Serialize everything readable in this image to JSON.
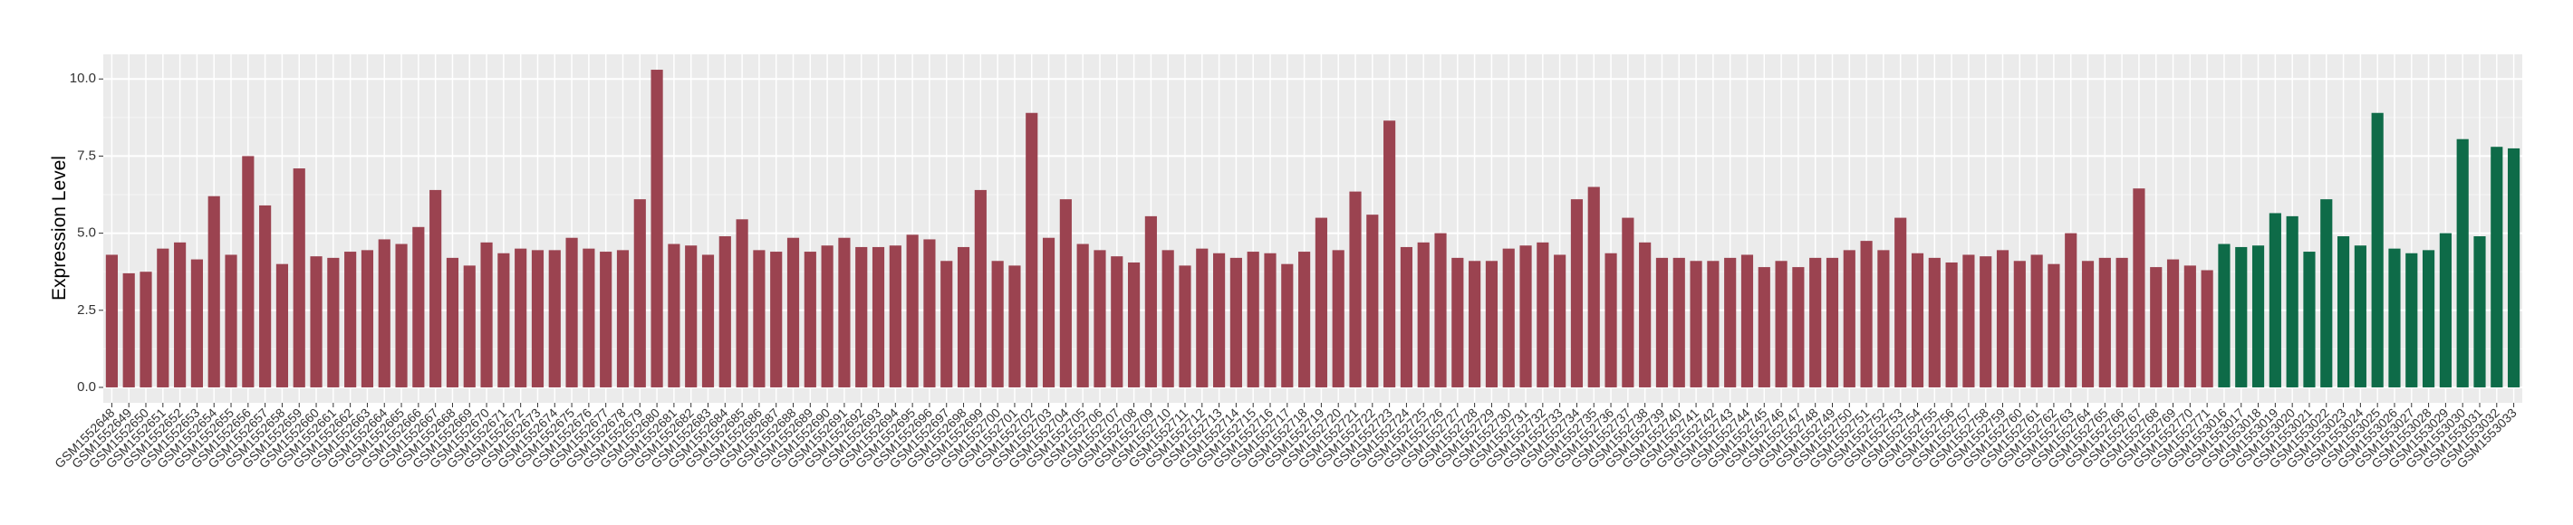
{
  "chart_data": {
    "type": "bar",
    "y_label": "Expression Level",
    "categories": [
      "GSM1552648",
      "GSM1552649",
      "GSM1552650",
      "GSM1552651",
      "GSM1552652",
      "GSM1552653",
      "GSM1552654",
      "GSM1552655",
      "GSM1552656",
      "GSM1552657",
      "GSM1552658",
      "GSM1552659",
      "GSM1552660",
      "GSM1552661",
      "GSM1552662",
      "GSM1552663",
      "GSM1552664",
      "GSM1552665",
      "GSM1552666",
      "GSM1552667",
      "GSM1552668",
      "GSM1552669",
      "GSM1552670",
      "GSM1552671",
      "GSM1552672",
      "GSM1552673",
      "GSM1552674",
      "GSM1552675",
      "GSM1552676",
      "GSM1552677",
      "GSM1552678",
      "GSM1552679",
      "GSM1552680",
      "GSM1552681",
      "GSM1552682",
      "GSM1552683",
      "GSM1552684",
      "GSM1552685",
      "GSM1552686",
      "GSM1552687",
      "GSM1552688",
      "GSM1552689",
      "GSM1552690",
      "GSM1552691",
      "GSM1552692",
      "GSM1552693",
      "GSM1552694",
      "GSM1552695",
      "GSM1552696",
      "GSM1552697",
      "GSM1552698",
      "GSM1552699",
      "GSM1552700",
      "GSM1552701",
      "GSM1552702",
      "GSM1552703",
      "GSM1552704",
      "GSM1552705",
      "GSM1552706",
      "GSM1552707",
      "GSM1552708",
      "GSM1552709",
      "GSM1552710",
      "GSM1552711",
      "GSM1552712",
      "GSM1552713",
      "GSM1552714",
      "GSM1552715",
      "GSM1552716",
      "GSM1552717",
      "GSM1552718",
      "GSM1552719",
      "GSM1552720",
      "GSM1552721",
      "GSM1552722",
      "GSM1552723",
      "GSM1552724",
      "GSM1552725",
      "GSM1552726",
      "GSM1552727",
      "GSM1552728",
      "GSM1552729",
      "GSM1552730",
      "GSM1552731",
      "GSM1552732",
      "GSM1552733",
      "GSM1552734",
      "GSM1552735",
      "GSM1552736",
      "GSM1552737",
      "GSM1552738",
      "GSM1552739",
      "GSM1552740",
      "GSM1552741",
      "GSM1552742",
      "GSM1552743",
      "GSM1552744",
      "GSM1552745",
      "GSM1552746",
      "GSM1552747",
      "GSM1552748",
      "GSM1552749",
      "GSM1552750",
      "GSM1552751",
      "GSM1552752",
      "GSM1552753",
      "GSM1552754",
      "GSM1552755",
      "GSM1552756",
      "GSM1552757",
      "GSM1552758",
      "GSM1552759",
      "GSM1552760",
      "GSM1552761",
      "GSM1552762",
      "GSM1552763",
      "GSM1552764",
      "GSM1552765",
      "GSM1552766",
      "GSM1552767",
      "GSM1552768",
      "GSM1552769",
      "GSM1552770",
      "GSM1552771",
      "GSM1553016",
      "GSM1553017",
      "GSM1553018",
      "GSM1553019",
      "GSM1553020",
      "GSM1553021",
      "GSM1553022",
      "GSM1553023",
      "GSM1553024",
      "GSM1553025",
      "GSM1553026",
      "GSM1553027",
      "GSM1553028",
      "GSM1553029",
      "GSM1553030",
      "GSM1553031",
      "GSM1553032",
      "GSM1553033"
    ],
    "values": [
      4.3,
      3.7,
      3.75,
      4.5,
      4.7,
      4.15,
      6.2,
      4.3,
      7.5,
      5.9,
      4.0,
      7.1,
      4.25,
      4.2,
      4.4,
      4.45,
      4.8,
      4.65,
      5.2,
      6.4,
      4.2,
      3.95,
      4.7,
      4.35,
      4.5,
      4.45,
      4.45,
      4.85,
      4.5,
      4.4,
      4.45,
      6.1,
      10.3,
      4.65,
      4.6,
      4.3,
      4.9,
      5.45,
      4.45,
      4.4,
      4.85,
      4.4,
      4.6,
      4.85,
      4.55,
      4.55,
      4.6,
      4.95,
      4.8,
      4.1,
      4.55,
      6.4,
      4.1,
      3.95,
      8.9,
      4.85,
      6.1,
      4.65,
      4.45,
      4.25,
      4.05,
      5.55,
      4.45,
      3.95,
      4.5,
      4.35,
      4.2,
      4.4,
      4.35,
      4.0,
      4.4,
      5.5,
      4.45,
      6.35,
      5.6,
      8.65,
      4.55,
      4.7,
      5.0,
      4.2,
      4.1,
      4.1,
      4.5,
      4.6,
      4.7,
      4.3,
      6.1,
      6.5,
      4.35,
      5.5,
      4.7,
      4.2,
      4.2,
      4.1,
      4.1,
      4.2,
      4.3,
      3.9,
      4.1,
      3.9,
      4.2,
      4.2,
      4.45,
      4.75,
      4.45,
      5.5,
      4.35,
      4.2,
      4.05,
      4.3,
      4.25,
      4.45,
      4.1,
      4.3,
      4.0,
      5.0,
      4.1,
      4.2,
      4.2,
      6.45,
      3.9,
      4.15,
      3.95,
      3.8,
      4.65,
      4.55,
      4.6,
      5.65,
      5.55,
      4.4,
      6.1,
      4.9,
      4.6,
      8.9,
      4.5,
      4.35,
      4.45,
      5.0,
      8.05,
      4.9,
      7.8,
      7.75
    ],
    "colors": [
      "#9b4350",
      "#9b4350",
      "#9b4350",
      "#9b4350",
      "#9b4350",
      "#9b4350",
      "#9b4350",
      "#9b4350",
      "#9b4350",
      "#9b4350",
      "#9b4350",
      "#9b4350",
      "#9b4350",
      "#9b4350",
      "#9b4350",
      "#9b4350",
      "#9b4350",
      "#9b4350",
      "#9b4350",
      "#9b4350",
      "#9b4350",
      "#9b4350",
      "#9b4350",
      "#9b4350",
      "#9b4350",
      "#9b4350",
      "#9b4350",
      "#9b4350",
      "#9b4350",
      "#9b4350",
      "#9b4350",
      "#9b4350",
      "#9b4350",
      "#9b4350",
      "#9b4350",
      "#9b4350",
      "#9b4350",
      "#9b4350",
      "#9b4350",
      "#9b4350",
      "#9b4350",
      "#9b4350",
      "#9b4350",
      "#9b4350",
      "#9b4350",
      "#9b4350",
      "#9b4350",
      "#9b4350",
      "#9b4350",
      "#9b4350",
      "#9b4350",
      "#9b4350",
      "#9b4350",
      "#9b4350",
      "#9b4350",
      "#9b4350",
      "#9b4350",
      "#9b4350",
      "#9b4350",
      "#9b4350",
      "#9b4350",
      "#9b4350",
      "#9b4350",
      "#9b4350",
      "#9b4350",
      "#9b4350",
      "#9b4350",
      "#9b4350",
      "#9b4350",
      "#9b4350",
      "#9b4350",
      "#9b4350",
      "#9b4350",
      "#9b4350",
      "#9b4350",
      "#9b4350",
      "#9b4350",
      "#9b4350",
      "#9b4350",
      "#9b4350",
      "#9b4350",
      "#9b4350",
      "#9b4350",
      "#9b4350",
      "#9b4350",
      "#9b4350",
      "#9b4350",
      "#9b4350",
      "#9b4350",
      "#9b4350",
      "#9b4350",
      "#9b4350",
      "#9b4350",
      "#9b4350",
      "#9b4350",
      "#9b4350",
      "#9b4350",
      "#9b4350",
      "#9b4350",
      "#9b4350",
      "#9b4350",
      "#9b4350",
      "#9b4350",
      "#9b4350",
      "#9b4350",
      "#9b4350",
      "#9b4350",
      "#9b4350",
      "#9b4350",
      "#9b4350",
      "#9b4350",
      "#9b4350",
      "#9b4350",
      "#9b4350",
      "#9b4350",
      "#9b4350",
      "#9b4350",
      "#9b4350",
      "#9b4350",
      "#9b4350",
      "#9b4350",
      "#9b4350",
      "#9b4350",
      "#9b4350",
      "#0e6b48",
      "#0e6b48",
      "#0e6b48",
      "#0e6b48",
      "#0e6b48",
      "#0e6b48",
      "#0e6b48",
      "#0e6b48",
      "#0e6b48",
      "#0e6b48",
      "#0e6b48",
      "#0e6b48",
      "#0e6b48",
      "#0e6b48",
      "#0e6b48",
      "#0e6b48",
      "#0e6b48",
      "#0e6b48"
    ],
    "ylim": [
      -0.5,
      10.8
    ],
    "yticks": [
      {
        "value": 0,
        "label": "0.0"
      },
      {
        "value": 2.5,
        "label": "2.5"
      },
      {
        "value": 5,
        "label": "5.0"
      },
      {
        "value": 7.5,
        "label": "7.5"
      },
      {
        "value": 10,
        "label": "10.0"
      }
    ],
    "grid": true
  }
}
